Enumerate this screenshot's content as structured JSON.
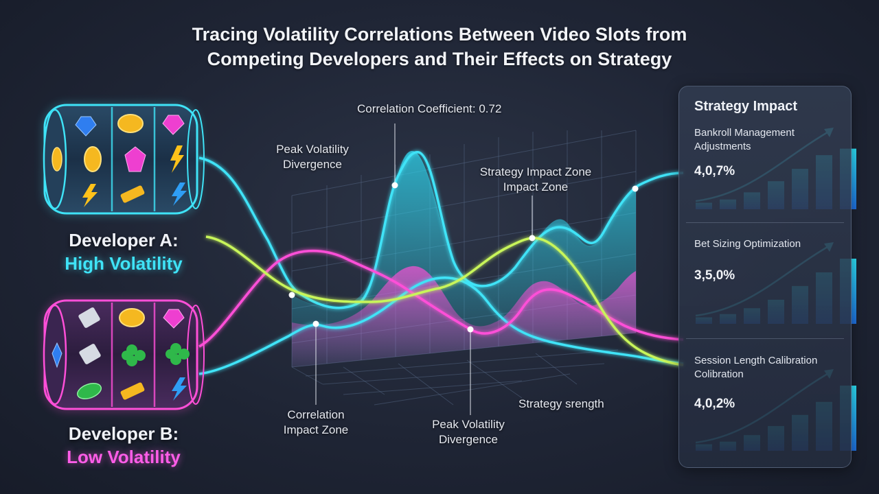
{
  "title": {
    "line1": "Tracing Volatility Correlations Between Video Slots from",
    "line2": "Competing Developers and Their Effects on Strategy"
  },
  "developers": [
    {
      "name": "Developer A:",
      "volatility": "High Volatility",
      "color": "#3fe3f7",
      "reel_icons": [
        [
          "blue-gem",
          "gold-coin",
          "pink-gem"
        ],
        [
          "gold-coin",
          "gold-coin",
          "lightning"
        ],
        [
          "lightning",
          "gold-bar",
          "blue-lightning"
        ]
      ]
    },
    {
      "name": "Developer B:",
      "volatility": "Low Volatility",
      "color": "#ff5de8",
      "reel_icons": [
        [
          "silver-bar",
          "gold-coin",
          "pink-gem"
        ],
        [
          "silver-bar",
          "clover",
          "clover"
        ],
        [
          "green-gem",
          "gold-bar",
          "blue-lightning"
        ]
      ]
    }
  ],
  "annotations": {
    "correlation_coefficient": "Correlation Coefficient: 0.72",
    "peak_divergence_top": "Peak Volatility Divergence",
    "impact_zone_top_1": "Strategy Impact Zone",
    "impact_zone_top_2": "Impact Zone",
    "correlation_impact_zone": "Correlation Impact Zone",
    "peak_divergence_bottom": "Peak Volatility Divergence",
    "strategy_strength": "Strategy srength"
  },
  "series_colors": {
    "developer_a": "#3fe3f7",
    "developer_b": "#ff4fd8",
    "correlation": "#c8f55a"
  },
  "strategy_panel": {
    "title": "Strategy Impact",
    "items": [
      {
        "name": "Bankroll Management Adjustments",
        "value": "4,0,7%",
        "bars": [
          1,
          1.5,
          2.6,
          4.3,
          6.2,
          8.3,
          9.3
        ]
      },
      {
        "name": "Bet Sizing Optimization",
        "value": "3,5,0%",
        "bars": [
          1,
          1.5,
          2.4,
          3.7,
          5.8,
          7.9,
          10
        ]
      },
      {
        "name": "Session Length Calibration Colibration",
        "value": "4,0,2%",
        "bars": [
          1,
          1.4,
          2.4,
          3.8,
          5.5,
          7.5,
          10
        ]
      }
    ]
  }
}
